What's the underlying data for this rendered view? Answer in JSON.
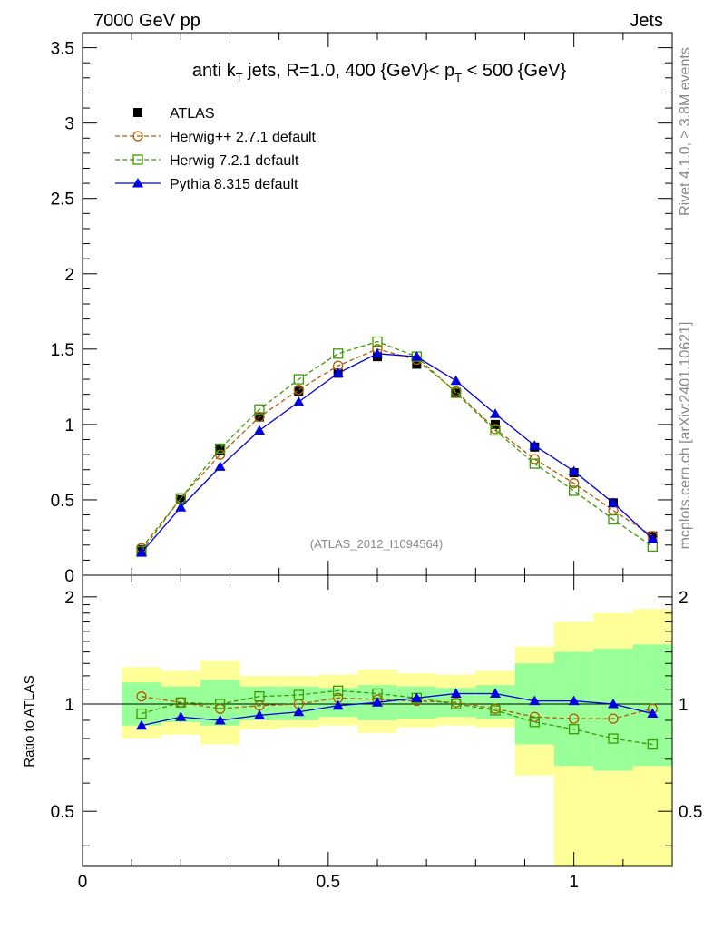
{
  "header": {
    "left": "7000 GeV pp",
    "right": "Jets"
  },
  "side_labels": {
    "rivet": "Rivet 4.1.0, ≥ 3.8M events",
    "mcplots": "mcplots.cern.ch [arXiv:2401.10621]"
  },
  "chart_data": [
    {
      "type": "line",
      "panel": "main",
      "title": "anti k_T jets, R=1.0,  400 {GeV}< p_T < 500 {GeV}",
      "title_parts": {
        "p1": "anti k",
        "s1": "T",
        "p2": " jets, R=1.0,  400 {GeV}< p",
        "s2": "T",
        "p3": " < 500 {GeV}"
      },
      "watermark": "(ATLAS_2012_I1094564)",
      "xlim": [
        0,
        1.2
      ],
      "ylim": [
        0,
        3.6
      ],
      "yticks": [
        0,
        0.5,
        1,
        1.5,
        2,
        2.5,
        3,
        3.5
      ],
      "ytick_labels": [
        "0",
        "0.5",
        "1",
        "1.5",
        "2",
        "2.5",
        "3",
        "3.5"
      ],
      "x": [
        0.12,
        0.2,
        0.28,
        0.36,
        0.44,
        0.52,
        0.6,
        0.68,
        0.76,
        0.84,
        0.92,
        1.0,
        1.08,
        1.16
      ],
      "series": [
        {
          "name": "ATLAS",
          "color": "#000000",
          "marker": "square-filled",
          "line": "none",
          "values": [
            0.17,
            0.5,
            0.83,
            1.05,
            1.22,
            1.34,
            1.45,
            1.4,
            1.21,
            1.0,
            0.85,
            0.68,
            0.48,
            0.26
          ]
        },
        {
          "name": "Herwig++ 2.7.1 default",
          "color": "#b15b00",
          "marker": "circle-open",
          "line": "dashed",
          "values": [
            0.18,
            0.51,
            0.8,
            1.05,
            1.23,
            1.39,
            1.5,
            1.43,
            1.22,
            0.97,
            0.77,
            0.61,
            0.43,
            0.26
          ]
        },
        {
          "name": "Herwig 7.2.1 default",
          "color": "#3a9a00",
          "marker": "square-open",
          "line": "dashed",
          "values": [
            0.16,
            0.51,
            0.84,
            1.1,
            1.3,
            1.47,
            1.55,
            1.45,
            1.21,
            0.96,
            0.74,
            0.56,
            0.37,
            0.19
          ]
        },
        {
          "name": "Pythia 8.315 default",
          "color": "#0000dd",
          "marker": "triangle-filled",
          "line": "solid",
          "values": [
            0.15,
            0.45,
            0.72,
            0.96,
            1.15,
            1.34,
            1.47,
            1.45,
            1.29,
            1.07,
            0.86,
            0.69,
            0.48,
            0.24
          ]
        }
      ]
    },
    {
      "type": "line",
      "panel": "ratio",
      "ylabel": "Ratio to ATLAS",
      "xlim": [
        0,
        1.2
      ],
      "ylim": [
        0.35,
        2.3
      ],
      "yticks": [
        0.5,
        1,
        2
      ],
      "ytick_labels": [
        "0.5",
        "1",
        "2"
      ],
      "xticks": [
        0,
        0.5,
        1
      ],
      "xtick_labels": [
        "0",
        "0.5",
        "1"
      ],
      "x": [
        0.12,
        0.2,
        0.28,
        0.36,
        0.44,
        0.52,
        0.6,
        0.68,
        0.76,
        0.84,
        0.92,
        1.0,
        1.08,
        1.16
      ],
      "bins": [
        [
          0.08,
          0.16
        ],
        [
          0.16,
          0.24
        ],
        [
          0.24,
          0.32
        ],
        [
          0.32,
          0.4
        ],
        [
          0.4,
          0.48
        ],
        [
          0.48,
          0.56
        ],
        [
          0.56,
          0.64
        ],
        [
          0.64,
          0.72
        ],
        [
          0.72,
          0.8
        ],
        [
          0.8,
          0.88
        ],
        [
          0.88,
          0.96
        ],
        [
          0.96,
          1.04
        ],
        [
          1.04,
          1.12
        ],
        [
          1.12,
          1.2
        ]
      ],
      "band_outer": [
        [
          0.8,
          1.27
        ],
        [
          0.82,
          1.24
        ],
        [
          0.77,
          1.32
        ],
        [
          0.85,
          1.2
        ],
        [
          0.86,
          1.2
        ],
        [
          0.87,
          1.21
        ],
        [
          0.83,
          1.25
        ],
        [
          0.86,
          1.22
        ],
        [
          0.87,
          1.21
        ],
        [
          0.86,
          1.24
        ],
        [
          0.63,
          1.45
        ],
        [
          0.35,
          1.7
        ],
        [
          0.35,
          1.8
        ],
        [
          0.35,
          1.85
        ]
      ],
      "band_inner": [
        [
          0.87,
          1.15
        ],
        [
          0.89,
          1.12
        ],
        [
          0.87,
          1.17
        ],
        [
          0.9,
          1.12
        ],
        [
          0.9,
          1.12
        ],
        [
          0.92,
          1.11
        ],
        [
          0.9,
          1.13
        ],
        [
          0.91,
          1.12
        ],
        [
          0.92,
          1.11
        ],
        [
          0.91,
          1.13
        ],
        [
          0.77,
          1.3
        ],
        [
          0.67,
          1.4
        ],
        [
          0.65,
          1.43
        ],
        [
          0.67,
          1.47
        ]
      ],
      "band_colors": {
        "outer": "#ffff99",
        "inner": "#99ff99"
      },
      "series": [
        {
          "name": "Herwig++ 2.7.1 default",
          "color": "#b15b00",
          "marker": "circle-open",
          "line": "dashed",
          "values": [
            1.05,
            1.01,
            0.97,
            0.99,
            1.0,
            1.04,
            1.03,
            1.02,
            1.01,
            0.97,
            0.92,
            0.91,
            0.91,
            0.97
          ]
        },
        {
          "name": "Herwig 7.2.1 default",
          "color": "#3a9a00",
          "marker": "square-open",
          "line": "dashed",
          "values": [
            0.94,
            1.01,
            1.0,
            1.05,
            1.06,
            1.09,
            1.07,
            1.04,
            1.0,
            0.96,
            0.89,
            0.85,
            0.8,
            0.77
          ]
        },
        {
          "name": "Pythia 8.315 default",
          "color": "#0000dd",
          "marker": "triangle-filled",
          "line": "solid",
          "values": [
            0.87,
            0.92,
            0.9,
            0.93,
            0.95,
            0.99,
            1.01,
            1.04,
            1.07,
            1.07,
            1.02,
            1.02,
            1.0,
            0.94
          ]
        }
      ]
    }
  ]
}
